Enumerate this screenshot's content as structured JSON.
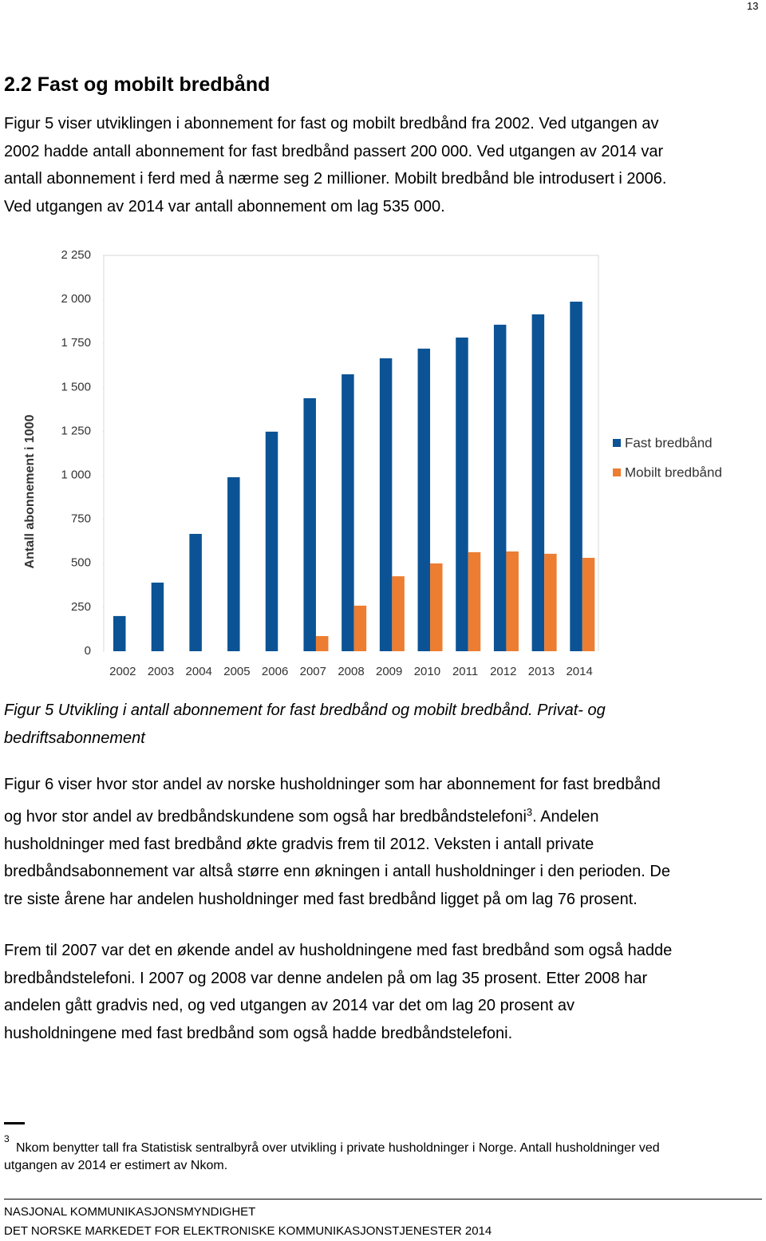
{
  "page_number": "13",
  "heading": "2.2 Fast og mobilt bredbånd",
  "paragraph1": [
    "Figur 5 viser utviklingen i abonnement for fast og mobilt bredbånd fra 2002. Ved utgangen av",
    "2002 hadde antall abonnement for fast bredbånd passert 200 000. Ved utgangen av 2014 var",
    "antall abonnement i ferd med å nærme seg 2 millioner. Mobilt bredbånd ble introdusert i 2006.",
    "Ved utgangen av 2014 var antall abonnement om lag 535 000."
  ],
  "chart_data": {
    "type": "bar",
    "y_label": "Antall abonnement i 1000",
    "categories": [
      "2002",
      "2003",
      "2004",
      "2005",
      "2006",
      "2007",
      "2008",
      "2009",
      "2010",
      "2011",
      "2012",
      "2013",
      "2014"
    ],
    "series": [
      {
        "name": "Fast bredbånd",
        "color": "#0b5394",
        "values": [
          200,
          390,
          667,
          989,
          1248,
          1438,
          1574,
          1665,
          1720,
          1783,
          1856,
          1915,
          1987
        ]
      },
      {
        "name": "Mobilt bredbånd",
        "color": "#ed7d31",
        "values": [
          null,
          null,
          null,
          null,
          null,
          86,
          259,
          426,
          499,
          563,
          567,
          554,
          531
        ]
      }
    ],
    "ylim": [
      0,
      2250
    ],
    "yticks": [
      0,
      250,
      500,
      750,
      {
        "value": 1000,
        "label": "1 000"
      },
      {
        "value": 1250,
        "label": "1 250"
      },
      {
        "value": 1500,
        "label": "1 500"
      },
      {
        "value": 1750,
        "label": "1 750"
      },
      {
        "value": 2000,
        "label": "2 000"
      },
      {
        "value": 2250,
        "label": "2 250"
      }
    ],
    "grid": false,
    "legend": "right"
  },
  "caption": [
    "Figur 5 Utvikling i antall abonnement for fast bredbånd og mobilt bredbånd. Privat- og",
    "bedriftsabonnement"
  ],
  "paragraph2": {
    "line1": "Figur 6 viser hvor stor andel av norske husholdninger som har abonnement for fast bredbånd",
    "line2_before": "og hvor stor andel av bredbåndskundene som også har bredbåndstelefoni",
    "footnote_ref": "3",
    "line2_after": ". Andelen",
    "rest": [
      "husholdninger med fast bredbånd økte gradvis frem til 2012. Veksten i antall private",
      "bredbåndsabonnement var altså større enn økningen i antall husholdninger i den perioden. De",
      "tre siste årene har andelen husholdninger med fast bredbånd ligget på om lag 76 prosent."
    ]
  },
  "paragraph3": [
    "Frem til 2007 var det en økende andel av husholdningene med fast bredbånd som også hadde",
    "bredbåndstelefoni. I 2007 og 2008 var denne andelen på om lag 35 prosent. Etter 2008 har",
    "andelen gått gradvis ned, og ved utgangen av 2014 var det om lag 20 prosent av",
    "husholdningene med fast bredbånd som også hadde bredbåndstelefoni."
  ],
  "footnote": {
    "marker": "3",
    "lines": [
      "Nkom benytter tall fra Statistisk sentralbyrå over utvikling i private husholdninger i Norge. Antall husholdninger ved",
      "utgangen av 2014 er estimert av Nkom."
    ]
  },
  "footer": [
    "NASJONAL KOMMUNIKASJONSMYNDIGHET",
    "DET NORSKE MARKEDET FOR ELEKTRONISKE KOMMUNIKASJONSTJENESTER 2014"
  ]
}
